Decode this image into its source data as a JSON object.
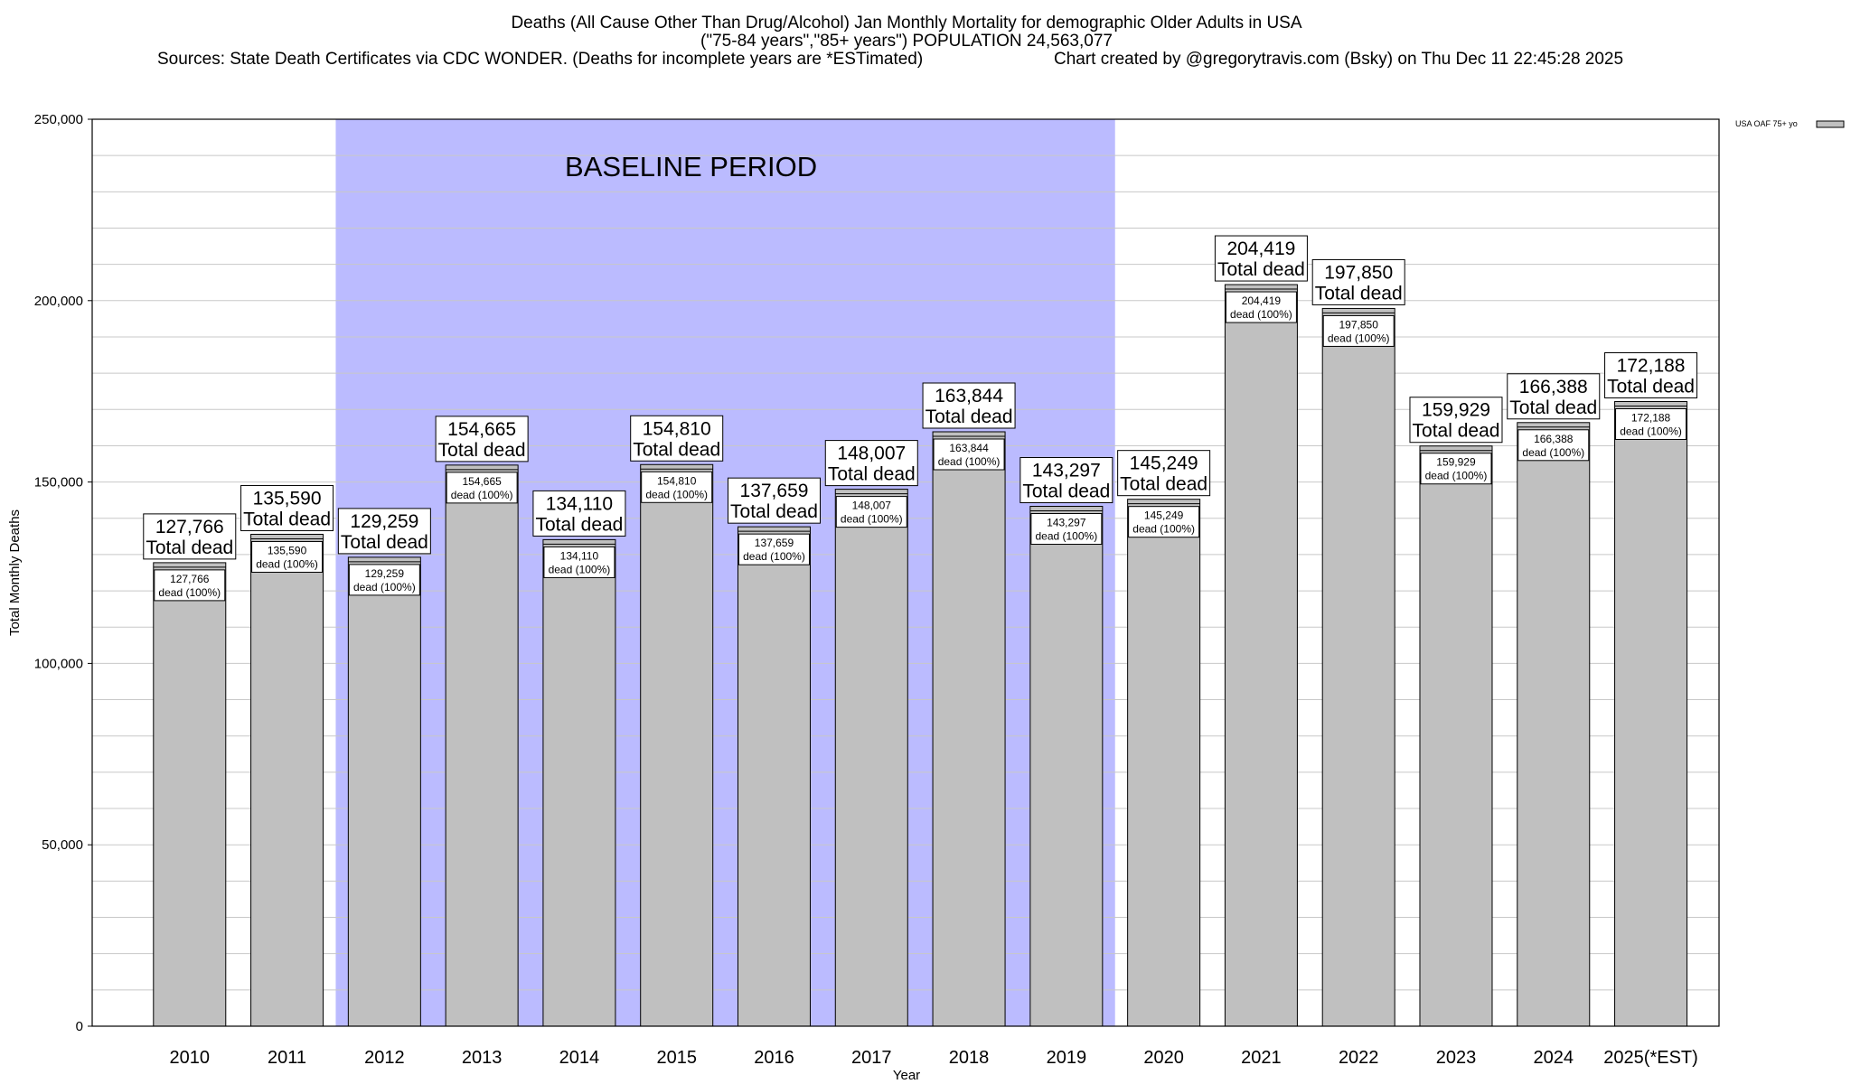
{
  "title_lines": [
    "Deaths (All Cause Other Than Drug/Alcohol) Jan Monthly Mortality for demographic Older Adults in USA",
    "(\"75-84 years\",\"85+ years\") POPULATION 24,563,077"
  ],
  "sources_text": "Sources: State Death Certificates via CDC WONDER. (Deaths for incomplete years are *ESTimated)",
  "credit_text": "Chart created by @gregorytravis.com (Bsky) on Thu Dec 11 22:45:28 2025",
  "baseline_label": "BASELINE PERIOD",
  "colors": {
    "bar": "#c0c0c0",
    "baseline": "#bbbbff",
    "grid": "#c8c8c8"
  },
  "chart_data": {
    "type": "bar",
    "xlabel": "Year",
    "ylabel": "Total Monthly Deaths",
    "ylim": [
      0,
      250000
    ],
    "yticks": [
      0,
      50000,
      100000,
      150000,
      200000,
      250000
    ],
    "ytick_labels": [
      "0",
      "50,000",
      "100,000",
      "150,000",
      "200,000",
      "250,000"
    ],
    "categories": [
      "2010",
      "2011",
      "2012",
      "2013",
      "2014",
      "2015",
      "2016",
      "2017",
      "2018",
      "2019",
      "2020",
      "2021",
      "2022",
      "2023",
      "2024",
      "2025(*EST)"
    ],
    "series": [
      {
        "name": "USA OAF 75+ yo",
        "values": [
          127766,
          135590,
          129259,
          154665,
          134110,
          154810,
          137659,
          148007,
          163844,
          143297,
          145249,
          204419,
          197850,
          159929,
          166388,
          172188
        ]
      }
    ],
    "value_labels": [
      "127,766",
      "135,590",
      "129,259",
      "154,665",
      "134,110",
      "154,810",
      "137,659",
      "148,007",
      "163,844",
      "143,297",
      "145,249",
      "204,419",
      "197,850",
      "159,929",
      "166,388",
      "172,188"
    ],
    "top_label_suffix": "Total dead",
    "inner_label_suffix": "dead (100%)",
    "baseline_period": [
      "2012",
      "2019"
    ],
    "grid": true,
    "legend_position": "top-right"
  }
}
